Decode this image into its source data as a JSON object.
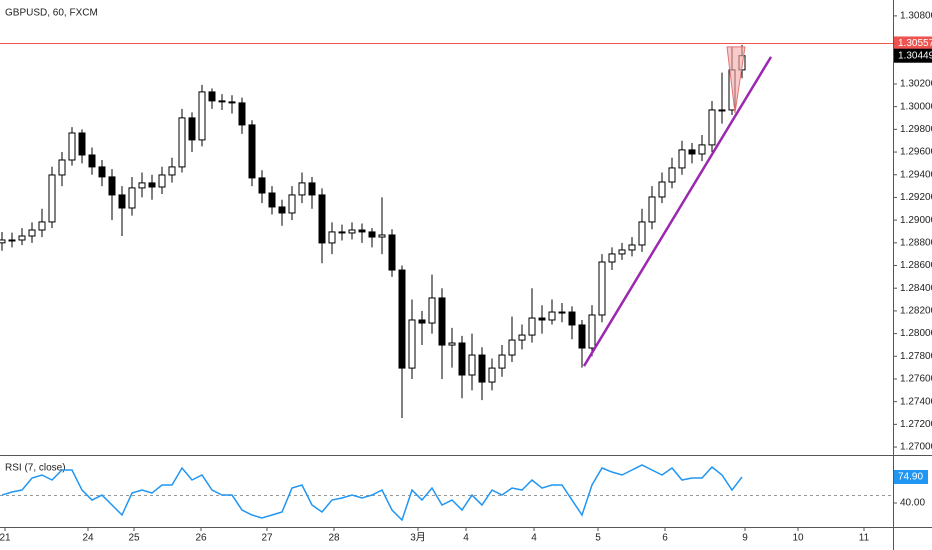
{
  "chart_data": {
    "type": "candlestick",
    "title": "GBPUSD, 60, FXCM",
    "up_color": "#ffffff",
    "down_color": "#000000",
    "wick_color": "#000000",
    "xlim": [
      -0.2,
      89.1
    ],
    "xticks": [
      {
        "value": 0.3,
        "label": "21"
      },
      {
        "value": 8.6,
        "label": "24"
      },
      {
        "value": 13.2,
        "label": "25"
      },
      {
        "value": 19.9,
        "label": "26"
      },
      {
        "value": 26.5,
        "label": "27"
      },
      {
        "value": 33.2,
        "label": "28"
      },
      {
        "value": 41.6,
        "label": "3月"
      },
      {
        "value": 46.4,
        "label": "4"
      },
      {
        "value": 53.2,
        "label": "4"
      },
      {
        "value": 59.6,
        "label": "5"
      },
      {
        "value": 66.3,
        "label": "6"
      },
      {
        "value": 74.3,
        "label": "9"
      },
      {
        "value": 79.6,
        "label": "10"
      },
      {
        "value": 86.2,
        "label": "11"
      }
    ],
    "ylim": [
      1.2693,
      1.3094
    ],
    "yticks": [
      {
        "value": 1.308,
        "label": "1.30800"
      },
      {
        "value": 1.302,
        "label": "1.30200"
      },
      {
        "value": 1.3,
        "label": "1.30000"
      },
      {
        "value": 1.298,
        "label": "1.29800"
      },
      {
        "value": 1.296,
        "label": "1.29600"
      },
      {
        "value": 1.294,
        "label": "1.29400"
      },
      {
        "value": 1.292,
        "label": "1.29200"
      },
      {
        "value": 1.29,
        "label": "1.29000"
      },
      {
        "value": 1.288,
        "label": "1.28800"
      },
      {
        "value": 1.286,
        "label": "1.28600"
      },
      {
        "value": 1.284,
        "label": "1.28400"
      },
      {
        "value": 1.282,
        "label": "1.28200"
      },
      {
        "value": 1.28,
        "label": "1.28000"
      },
      {
        "value": 1.278,
        "label": "1.27800"
      },
      {
        "value": 1.276,
        "label": "1.27600"
      },
      {
        "value": 1.274,
        "label": "1.27400"
      },
      {
        "value": 1.272,
        "label": "1.27200"
      },
      {
        "value": 1.27,
        "label": "1.27000"
      }
    ],
    "open": [
      1.288,
      1.28825,
      1.28825,
      1.2886,
      1.28913,
      1.28984,
      1.29398,
      1.2953,
      1.29768,
      1.29574,
      1.29469,
      1.29381,
      1.29222,
      1.29107,
      1.29284,
      1.29328,
      1.29292,
      1.29398,
      1.29469,
      1.29901,
      1.29707,
      1.3013,
      1.30051,
      1.30042,
      1.30033,
      1.29839,
      1.29372,
      1.29239,
      1.29116,
      1.29063,
      1.29222,
      1.29328,
      1.29222,
      1.28799,
      1.28896,
      1.28887,
      1.28913,
      1.28896,
      1.28851,
      1.28869,
      1.2856,
      1.27696,
      1.2812,
      1.28093,
      1.28314,
      1.27899,
      1.27917,
      1.27635,
      1.27811,
      1.27573,
      1.27696,
      1.27811,
      1.27943,
      1.27987,
      1.28137,
      1.2812,
      1.2819,
      1.2819,
      1.28076,
      1.27873,
      1.28164,
      1.28631,
      1.28702,
      1.28737,
      1.28781,
      1.28984,
      1.29204,
      1.29336,
      1.2946,
      1.29619,
      1.29583,
      1.29663,
      1.29971,
      1.29971,
      1.30324
    ],
    "high": [
      1.28895,
      1.2889,
      1.2893,
      1.2898,
      1.291,
      1.2947,
      1.296,
      1.2982,
      1.298,
      1.2964,
      1.2953,
      1.2945,
      1.293,
      1.2938,
      1.2942,
      1.294,
      1.2947,
      1.2955,
      1.2998,
      1.2995,
      1.30192,
      1.3016,
      1.3011,
      1.301,
      1.3008,
      1.2988,
      1.2944,
      1.293,
      1.2918,
      1.293,
      1.2942,
      1.2938,
      1.2928,
      1.2898,
      1.2896,
      1.2898,
      1.2897,
      1.2893,
      1.292,
      1.2892,
      1.286,
      1.283,
      1.282,
      1.2852,
      1.284,
      1.2805,
      1.2798,
      1.28,
      1.2788,
      1.2778,
      1.279,
      1.2815,
      1.2808,
      1.284,
      1.2825,
      1.283,
      1.2827,
      1.2824,
      1.2812,
      1.2825,
      1.287,
      1.2876,
      1.288,
      1.2885,
      1.291,
      1.293,
      1.2942,
      1.2955,
      1.297,
      1.2968,
      1.2975,
      1.3005,
      1.303,
      1.30527,
      1.30544
    ],
    "low": [
      1.2873,
      1.2876,
      1.2878,
      1.288,
      1.2885,
      1.2893,
      1.293,
      1.2948,
      1.295,
      1.294,
      1.293,
      1.29,
      1.2886,
      1.2904,
      1.292,
      1.2918,
      1.2923,
      1.2933,
      1.2942,
      1.296,
      1.2965,
      1.2998,
      1.2997,
      1.2994,
      1.2976,
      1.293,
      1.2915,
      1.2905,
      1.2895,
      1.29,
      1.2915,
      1.291,
      1.2862,
      1.287,
      1.2882,
      1.2883,
      1.288,
      1.2876,
      1.287,
      1.285,
      1.27256,
      1.276,
      1.279,
      1.28,
      1.276,
      1.277,
      1.2743,
      1.275,
      1.27414,
      1.275,
      1.2762,
      1.2775,
      1.2786,
      1.2792,
      1.28,
      1.2808,
      1.281,
      1.2795,
      1.277,
      1.278,
      1.281,
      1.2856,
      1.2865,
      1.2868,
      1.2872,
      1.2892,
      1.2915,
      1.2928,
      1.294,
      1.295,
      1.2952,
      1.296,
      1.2985,
      1.29927,
      1.3025
    ],
    "close": [
      1.28825,
      1.28825,
      1.2886,
      1.28913,
      1.28984,
      1.29398,
      1.2953,
      1.29768,
      1.29574,
      1.29469,
      1.29381,
      1.29222,
      1.29107,
      1.29284,
      1.29328,
      1.29292,
      1.29398,
      1.29469,
      1.29901,
      1.29707,
      1.3013,
      1.30051,
      1.30042,
      1.30033,
      1.29839,
      1.29372,
      1.29239,
      1.29116,
      1.29063,
      1.29222,
      1.29328,
      1.29222,
      1.28799,
      1.28896,
      1.28887,
      1.28913,
      1.28896,
      1.28851,
      1.28869,
      1.2856,
      1.27696,
      1.2812,
      1.28093,
      1.28314,
      1.27899,
      1.27917,
      1.27635,
      1.27811,
      1.27573,
      1.27696,
      1.27811,
      1.27943,
      1.27987,
      1.28137,
      1.2812,
      1.2819,
      1.2819,
      1.28076,
      1.27873,
      1.28164,
      1.28631,
      1.28702,
      1.28737,
      1.28781,
      1.28984,
      1.29204,
      1.29336,
      1.2946,
      1.29619,
      1.29583,
      1.29663,
      1.29971,
      1.29971,
      1.30324,
      1.30449
    ],
    "price_line": {
      "value": 1.30557,
      "color": "#ef5350"
    },
    "last_price": {
      "value": 1.30449,
      "color": "#000000"
    },
    "trendline": {
      "x": [
        58.2,
        76.9
      ],
      "y": [
        1.27714,
        1.30439
      ],
      "color": "#9c27b0"
    },
    "triangle": {
      "x": [
        72.5,
        74.3,
        73.3
      ],
      "y": [
        1.30527,
        1.30527,
        1.29945
      ],
      "color": "#f4a6a6"
    },
    "rsi": {
      "title": "RSI (7, close)",
      "color": "#2196f3",
      "ylim": [
        7.8,
        103.1
      ],
      "yticks": [
        {
          "value": 40,
          "label": "40.00"
        }
      ],
      "level": 50,
      "values": [
        50.7,
        54.8,
        57.4,
        73.6,
        77.6,
        70.9,
        84.3,
        84.3,
        57.4,
        44.0,
        50.7,
        37.3,
        23.9,
        53.4,
        57.4,
        53.4,
        64.2,
        64.2,
        87.0,
        70.9,
        77.6,
        57.4,
        50.7,
        50.7,
        30.6,
        23.9,
        19.9,
        23.9,
        27.9,
        60.1,
        64.2,
        37.3,
        27.9,
        44.0,
        46.7,
        50.7,
        46.7,
        50.7,
        57.4,
        30.6,
        17.2,
        57.4,
        44.0,
        60.1,
        37.3,
        44.0,
        30.6,
        50.7,
        37.3,
        57.4,
        50.7,
        60.1,
        57.4,
        70.9,
        60.1,
        64.2,
        64.2,
        44.0,
        23.9,
        64.2,
        87.0,
        81.6,
        77.6,
        84.3,
        91.0,
        84.3,
        77.6,
        87.0,
        70.9,
        73.6,
        73.6,
        88.3,
        77.6,
        57.4,
        74.9
      ],
      "last": {
        "value": 74.9,
        "label": "74.90"
      }
    }
  }
}
